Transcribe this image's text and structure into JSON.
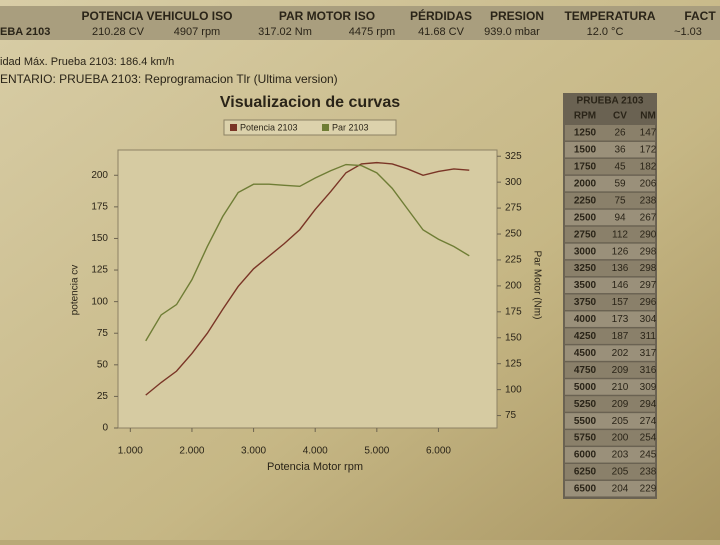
{
  "header": {
    "columns": [
      "POTENCIA VEHICULO ISO",
      "PAR MOTOR ISO",
      "PÉRDIDAS",
      "PRESION",
      "TEMPERATURA",
      "FACT"
    ],
    "values": [
      "EBA 2103",
      "210.28 CV",
      "4907 rpm",
      "317.02 Nm",
      "4475 rpm",
      "41.68 CV",
      "939.0 mbar",
      "12.0 °C",
      "~1.03"
    ]
  },
  "info": [
    "idad Máx. Prueba 2103: 186.4 km/h",
    "ENTARIO:  PRUEBA 2103: Reprogramacion Tlr (Ultima version)"
  ],
  "table": {
    "title": "PRUEBA 2103",
    "columns": [
      "RPM",
      "CV",
      "NM"
    ],
    "rows": [
      [
        1250,
        26,
        147
      ],
      [
        1500,
        36,
        172
      ],
      [
        1750,
        45,
        182
      ],
      [
        2000,
        59,
        206
      ],
      [
        2250,
        75,
        238
      ],
      [
        2500,
        94,
        267
      ],
      [
        2750,
        112,
        290
      ],
      [
        3000,
        126,
        298
      ],
      [
        3250,
        136,
        298
      ],
      [
        3500,
        146,
        297
      ],
      [
        3750,
        157,
        296
      ],
      [
        4000,
        173,
        304
      ],
      [
        4250,
        187,
        311
      ],
      [
        4500,
        202,
        317
      ],
      [
        4750,
        209,
        316
      ],
      [
        5000,
        210,
        309
      ],
      [
        5250,
        209,
        294
      ],
      [
        5500,
        205,
        274
      ],
      [
        5750,
        200,
        254
      ],
      [
        6000,
        203,
        245
      ],
      [
        6250,
        205,
        238
      ],
      [
        6500,
        204,
        229
      ]
    ]
  },
  "chart_data": {
    "type": "line",
    "title": "Visualizacion de curvas",
    "xlabel": "Potencia Motor rpm",
    "ylabel": "potencia cv",
    "y2label": "Par Motor (Nm)",
    "x": [
      1250,
      1500,
      1750,
      2000,
      2250,
      2500,
      2750,
      3000,
      3250,
      3500,
      3750,
      4000,
      4250,
      4500,
      4750,
      5000,
      5250,
      5500,
      5750,
      6000,
      6250,
      6500
    ],
    "series": [
      {
        "name": "Potencia 2103",
        "color": "#7a3526",
        "values": [
          26,
          36,
          45,
          59,
          75,
          94,
          112,
          126,
          136,
          146,
          157,
          173,
          187,
          202,
          209,
          210,
          209,
          205,
          200,
          203,
          205,
          204
        ]
      },
      {
        "name": "Par 2103",
        "color": "#6f7d35",
        "axis": "y2",
        "values": [
          147,
          172,
          182,
          206,
          238,
          267,
          290,
          298,
          298,
          297,
          296,
          304,
          311,
          317,
          316,
          309,
          294,
          274,
          254,
          245,
          238,
          229
        ]
      }
    ],
    "xlim": [
      800,
      6950
    ],
    "xticks": [
      {
        "value": 1000,
        "label": "1.000"
      },
      {
        "value": 2000,
        "label": "2.000"
      },
      {
        "value": 3000,
        "label": "3.000"
      },
      {
        "value": 4000,
        "label": "4.000"
      },
      {
        "value": 5000,
        "label": "5.000"
      },
      {
        "value": 6000,
        "label": "6.000"
      }
    ],
    "ylim": [
      0,
      220
    ],
    "yticks": [
      0,
      25,
      50,
      75,
      100,
      125,
      150,
      175,
      200
    ],
    "y2lim": [
      63,
      331
    ],
    "y2ticks": [
      75,
      100,
      125,
      150,
      175,
      200,
      225,
      250,
      275,
      300,
      325
    ]
  }
}
